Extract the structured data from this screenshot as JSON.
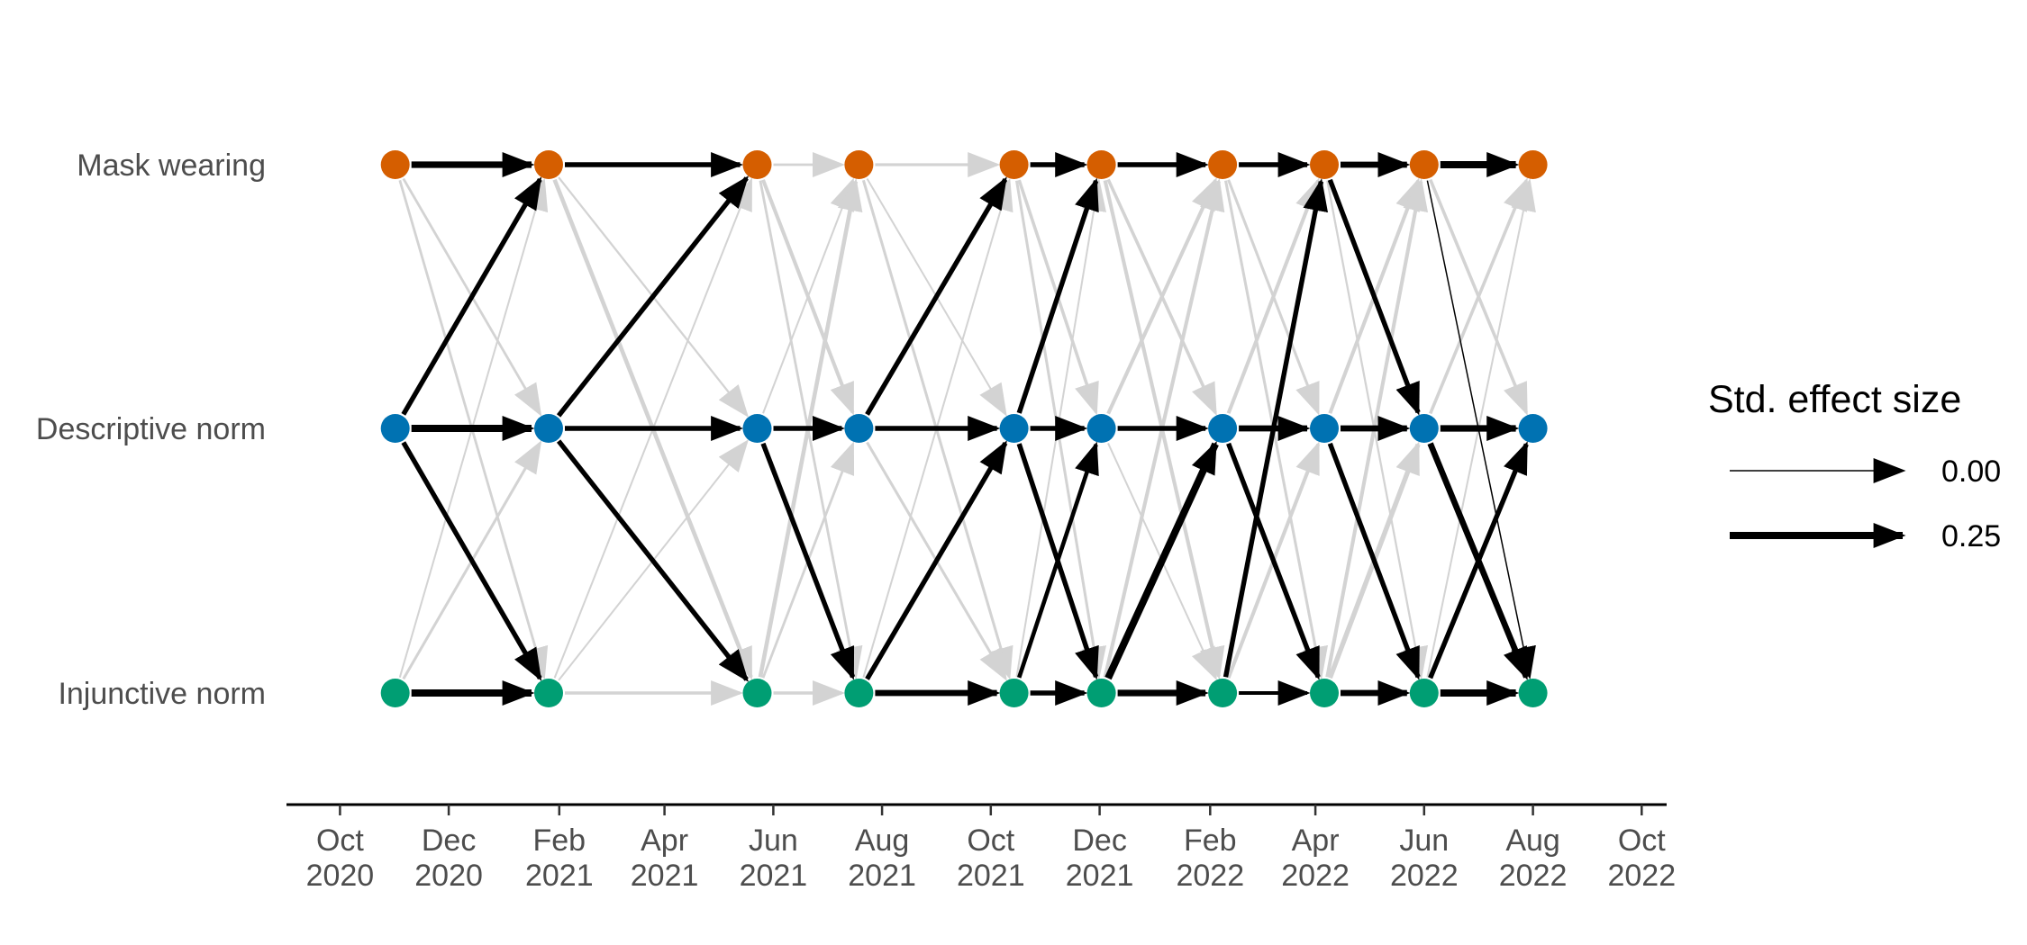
{
  "chart_data": {
    "type": "network",
    "title": "",
    "xlabel": "",
    "ylabel": "",
    "xlim": [
      "2020-09-01",
      "2022-10-15"
    ],
    "x_axis": {
      "ticks": [
        {
          "date": "2020-10-01",
          "month": "Oct",
          "year": "2020"
        },
        {
          "date": "2020-12-01",
          "month": "Dec",
          "year": "2020"
        },
        {
          "date": "2021-02-01",
          "month": "Feb",
          "year": "2021"
        },
        {
          "date": "2021-04-01",
          "month": "Apr",
          "year": "2021"
        },
        {
          "date": "2021-06-01",
          "month": "Jun",
          "year": "2021"
        },
        {
          "date": "2021-08-01",
          "month": "Aug",
          "year": "2021"
        },
        {
          "date": "2021-10-01",
          "month": "Oct",
          "year": "2021"
        },
        {
          "date": "2021-12-01",
          "month": "Dec",
          "year": "2021"
        },
        {
          "date": "2022-02-01",
          "month": "Feb",
          "year": "2022"
        },
        {
          "date": "2022-04-01",
          "month": "Apr",
          "year": "2022"
        },
        {
          "date": "2022-06-01",
          "month": "Jun",
          "year": "2022"
        },
        {
          "date": "2022-08-01",
          "month": "Aug",
          "year": "2022"
        },
        {
          "date": "2022-10-01",
          "month": "Oct",
          "year": "2022"
        }
      ]
    },
    "variables": [
      {
        "name": "Mask wearing",
        "color": "#D55E00"
      },
      {
        "name": "Descriptive norm",
        "color": "#0072B2"
      },
      {
        "name": "Injunctive norm",
        "color": "#009E73"
      }
    ],
    "waves": [
      "2020-11-01",
      "2021-01-26",
      "2021-05-23",
      "2021-07-19",
      "2021-10-14",
      "2021-12-02",
      "2022-02-08",
      "2022-04-06",
      "2022-06-01",
      "2022-08-01"
    ],
    "path_color_significant": "#000000",
    "path_color_nonsignificant": "#d3d3d3",
    "paths": [
      {
        "wave": 0,
        "from": "Mask wearing",
        "to": "Mask wearing",
        "effect": 0.22,
        "significant": true
      },
      {
        "wave": 0,
        "from": "Descriptive norm",
        "to": "Descriptive norm",
        "effect": 0.25,
        "significant": true
      },
      {
        "wave": 0,
        "from": "Injunctive norm",
        "to": "Injunctive norm",
        "effect": 0.25,
        "significant": true
      },
      {
        "wave": 0,
        "from": "Descriptive norm",
        "to": "Mask wearing",
        "effect": 0.15,
        "significant": true
      },
      {
        "wave": 0,
        "from": "Descriptive norm",
        "to": "Injunctive norm",
        "effect": 0.15,
        "significant": true
      },
      {
        "wave": 0,
        "from": "Mask wearing",
        "to": "Descriptive norm",
        "effect": 0.05,
        "significant": false
      },
      {
        "wave": 0,
        "from": "Mask wearing",
        "to": "Injunctive norm",
        "effect": 0.05,
        "significant": false
      },
      {
        "wave": 0,
        "from": "Injunctive norm",
        "to": "Mask wearing",
        "effect": 0.02,
        "significant": false
      },
      {
        "wave": 0,
        "from": "Injunctive norm",
        "to": "Descriptive norm",
        "effect": 0.06,
        "significant": false
      },
      {
        "wave": 1,
        "from": "Mask wearing",
        "to": "Mask wearing",
        "effect": 0.15,
        "significant": true
      },
      {
        "wave": 1,
        "from": "Descriptive norm",
        "to": "Descriptive norm",
        "effect": 0.15,
        "significant": true
      },
      {
        "wave": 1,
        "from": "Injunctive norm",
        "to": "Injunctive norm",
        "effect": 0.08,
        "significant": false
      },
      {
        "wave": 1,
        "from": "Descriptive norm",
        "to": "Mask wearing",
        "effect": 0.15,
        "significant": true
      },
      {
        "wave": 1,
        "from": "Descriptive norm",
        "to": "Injunctive norm",
        "effect": 0.15,
        "significant": true
      },
      {
        "wave": 1,
        "from": "Mask wearing",
        "to": "Descriptive norm",
        "effect": 0.03,
        "significant": false
      },
      {
        "wave": 1,
        "from": "Mask wearing",
        "to": "Injunctive norm",
        "effect": 0.12,
        "significant": false
      },
      {
        "wave": 1,
        "from": "Injunctive norm",
        "to": "Mask wearing",
        "effect": 0.02,
        "significant": false
      },
      {
        "wave": 1,
        "from": "Injunctive norm",
        "to": "Descriptive norm",
        "effect": 0.02,
        "significant": false
      },
      {
        "wave": 2,
        "from": "Mask wearing",
        "to": "Mask wearing",
        "effect": 0.05,
        "significant": false
      },
      {
        "wave": 2,
        "from": "Descriptive norm",
        "to": "Descriptive norm",
        "effect": 0.15,
        "significant": true
      },
      {
        "wave": 2,
        "from": "Injunctive norm",
        "to": "Injunctive norm",
        "effect": 0.08,
        "significant": false
      },
      {
        "wave": 2,
        "from": "Descriptive norm",
        "to": "Mask wearing",
        "effect": 0.02,
        "significant": false
      },
      {
        "wave": 2,
        "from": "Descriptive norm",
        "to": "Injunctive norm",
        "effect": 0.15,
        "significant": true
      },
      {
        "wave": 2,
        "from": "Mask wearing",
        "to": "Descriptive norm",
        "effect": 0.1,
        "significant": false
      },
      {
        "wave": 2,
        "from": "Mask wearing",
        "to": "Injunctive norm",
        "effect": 0.05,
        "significant": false
      },
      {
        "wave": 2,
        "from": "Injunctive norm",
        "to": "Mask wearing",
        "effect": 0.12,
        "significant": false
      },
      {
        "wave": 2,
        "from": "Injunctive norm",
        "to": "Descriptive norm",
        "effect": 0.05,
        "significant": false
      },
      {
        "wave": 3,
        "from": "Mask wearing",
        "to": "Mask wearing",
        "effect": 0.07,
        "significant": false
      },
      {
        "wave": 3,
        "from": "Descriptive norm",
        "to": "Descriptive norm",
        "effect": 0.15,
        "significant": true
      },
      {
        "wave": 3,
        "from": "Injunctive norm",
        "to": "Injunctive norm",
        "effect": 0.2,
        "significant": true
      },
      {
        "wave": 3,
        "from": "Descriptive norm",
        "to": "Mask wearing",
        "effect": 0.15,
        "significant": true
      },
      {
        "wave": 3,
        "from": "Injunctive norm",
        "to": "Descriptive norm",
        "effect": 0.15,
        "significant": true
      },
      {
        "wave": 3,
        "from": "Mask wearing",
        "to": "Descriptive norm",
        "effect": 0.02,
        "significant": false
      },
      {
        "wave": 3,
        "from": "Mask wearing",
        "to": "Injunctive norm",
        "effect": 0.06,
        "significant": false
      },
      {
        "wave": 3,
        "from": "Descriptive norm",
        "to": "Injunctive norm",
        "effect": 0.06,
        "significant": false
      },
      {
        "wave": 3,
        "from": "Injunctive norm",
        "to": "Mask wearing",
        "effect": 0.02,
        "significant": false
      },
      {
        "wave": 4,
        "from": "Mask wearing",
        "to": "Mask wearing",
        "effect": 0.15,
        "significant": true
      },
      {
        "wave": 4,
        "from": "Descriptive norm",
        "to": "Descriptive norm",
        "effect": 0.15,
        "significant": true
      },
      {
        "wave": 4,
        "from": "Injunctive norm",
        "to": "Injunctive norm",
        "effect": 0.15,
        "significant": true
      },
      {
        "wave": 4,
        "from": "Descriptive norm",
        "to": "Mask wearing",
        "effect": 0.15,
        "significant": true
      },
      {
        "wave": 4,
        "from": "Descriptive norm",
        "to": "Injunctive norm",
        "effect": 0.15,
        "significant": true
      },
      {
        "wave": 4,
        "from": "Injunctive norm",
        "to": "Descriptive norm",
        "effect": 0.12,
        "significant": true
      },
      {
        "wave": 4,
        "from": "Mask wearing",
        "to": "Descriptive norm",
        "effect": 0.08,
        "significant": false
      },
      {
        "wave": 4,
        "from": "Mask wearing",
        "to": "Injunctive norm",
        "effect": 0.06,
        "significant": false
      },
      {
        "wave": 4,
        "from": "Injunctive norm",
        "to": "Mask wearing",
        "effect": 0.02,
        "significant": false
      },
      {
        "wave": 5,
        "from": "Mask wearing",
        "to": "Mask wearing",
        "effect": 0.15,
        "significant": true
      },
      {
        "wave": 5,
        "from": "Descriptive norm",
        "to": "Descriptive norm",
        "effect": 0.15,
        "significant": true
      },
      {
        "wave": 5,
        "from": "Injunctive norm",
        "to": "Injunctive norm",
        "effect": 0.22,
        "significant": true
      },
      {
        "wave": 5,
        "from": "Injunctive norm",
        "to": "Descriptive norm",
        "effect": 0.25,
        "significant": true
      },
      {
        "wave": 5,
        "from": "Mask wearing",
        "to": "Descriptive norm",
        "effect": 0.08,
        "significant": false
      },
      {
        "wave": 5,
        "from": "Mask wearing",
        "to": "Injunctive norm",
        "effect": 0.1,
        "significant": false
      },
      {
        "wave": 5,
        "from": "Descriptive norm",
        "to": "Mask wearing",
        "effect": 0.1,
        "significant": false
      },
      {
        "wave": 5,
        "from": "Descriptive norm",
        "to": "Injunctive norm",
        "effect": 0.02,
        "significant": false
      },
      {
        "wave": 5,
        "from": "Injunctive norm",
        "to": "Mask wearing",
        "effect": 0.1,
        "significant": false
      },
      {
        "wave": 6,
        "from": "Mask wearing",
        "to": "Mask wearing",
        "effect": 0.15,
        "significant": true
      },
      {
        "wave": 6,
        "from": "Descriptive norm",
        "to": "Descriptive norm",
        "effect": 0.2,
        "significant": true
      },
      {
        "wave": 6,
        "from": "Injunctive norm",
        "to": "Injunctive norm",
        "effect": 0.1,
        "significant": true
      },
      {
        "wave": 6,
        "from": "Descriptive norm",
        "to": "Injunctive norm",
        "effect": 0.15,
        "significant": true
      },
      {
        "wave": 6,
        "from": "Injunctive norm",
        "to": "Mask wearing",
        "effect": 0.15,
        "significant": true
      },
      {
        "wave": 6,
        "from": "Mask wearing",
        "to": "Descriptive norm",
        "effect": 0.06,
        "significant": false
      },
      {
        "wave": 6,
        "from": "Mask wearing",
        "to": "Injunctive norm",
        "effect": 0.06,
        "significant": false
      },
      {
        "wave": 6,
        "from": "Descriptive norm",
        "to": "Mask wearing",
        "effect": 0.1,
        "significant": false
      },
      {
        "wave": 6,
        "from": "Injunctive norm",
        "to": "Descriptive norm",
        "effect": 0.1,
        "significant": false
      },
      {
        "wave": 7,
        "from": "Mask wearing",
        "to": "Mask wearing",
        "effect": 0.2,
        "significant": true
      },
      {
        "wave": 7,
        "from": "Descriptive norm",
        "to": "Descriptive norm",
        "effect": 0.2,
        "significant": true
      },
      {
        "wave": 7,
        "from": "Injunctive norm",
        "to": "Injunctive norm",
        "effect": 0.2,
        "significant": true
      },
      {
        "wave": 7,
        "from": "Mask wearing",
        "to": "Descriptive norm",
        "effect": 0.15,
        "significant": true
      },
      {
        "wave": 7,
        "from": "Descriptive norm",
        "to": "Injunctive norm",
        "effect": 0.15,
        "significant": true
      },
      {
        "wave": 7,
        "from": "Mask wearing",
        "to": "Injunctive norm",
        "effect": 0.03,
        "significant": false
      },
      {
        "wave": 7,
        "from": "Descriptive norm",
        "to": "Mask wearing",
        "effect": 0.1,
        "significant": false
      },
      {
        "wave": 7,
        "from": "Injunctive norm",
        "to": "Descriptive norm",
        "effect": 0.15,
        "significant": false
      },
      {
        "wave": 7,
        "from": "Injunctive norm",
        "to": "Mask wearing",
        "effect": 0.1,
        "significant": false
      },
      {
        "wave": 8,
        "from": "Mask wearing",
        "to": "Mask wearing",
        "effect": 0.25,
        "significant": true
      },
      {
        "wave": 8,
        "from": "Descriptive norm",
        "to": "Descriptive norm",
        "effect": 0.22,
        "significant": true
      },
      {
        "wave": 8,
        "from": "Injunctive norm",
        "to": "Injunctive norm",
        "effect": 0.25,
        "significant": true
      },
      {
        "wave": 8,
        "from": "Descriptive norm",
        "to": "Injunctive norm",
        "effect": 0.2,
        "significant": true
      },
      {
        "wave": 8,
        "from": "Injunctive norm",
        "to": "Descriptive norm",
        "effect": 0.15,
        "significant": true
      },
      {
        "wave": 8,
        "from": "Mask wearing",
        "to": "Injunctive norm",
        "effect": 0.0,
        "significant": true
      },
      {
        "wave": 8,
        "from": "Mask wearing",
        "to": "Descriptive norm",
        "effect": 0.08,
        "significant": false
      },
      {
        "wave": 8,
        "from": "Descriptive norm",
        "to": "Mask wearing",
        "effect": 0.08,
        "significant": false
      },
      {
        "wave": 8,
        "from": "Injunctive norm",
        "to": "Mask wearing",
        "effect": 0.02,
        "significant": false
      }
    ],
    "legend": {
      "title": "Std. effect size",
      "position": "right",
      "entries": [
        {
          "label": "0.00",
          "effect": 0.0
        },
        {
          "label": "0.25",
          "effect": 0.25
        }
      ]
    },
    "grid": false
  }
}
